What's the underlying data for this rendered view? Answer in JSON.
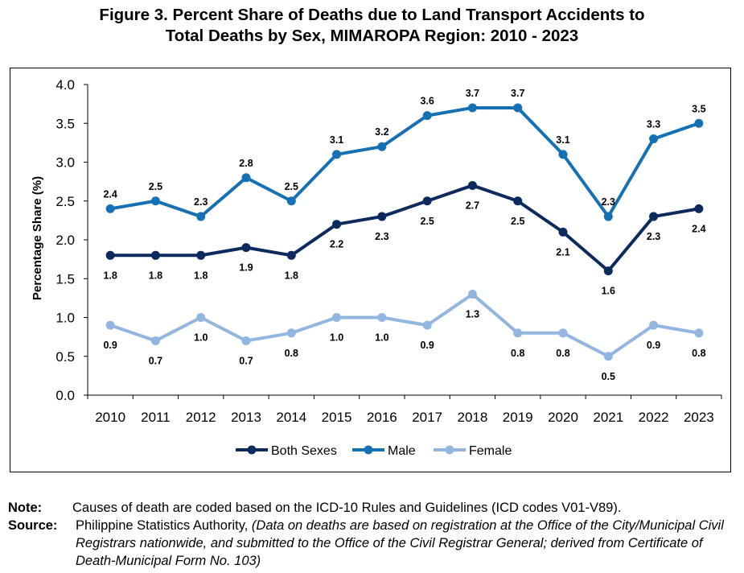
{
  "title_line1": "Figure 3. Percent Share of Deaths due to Land Transport Accidents to",
  "title_line2": "Total Deaths by Sex, MIMAROPA Region: 2010 - 2023",
  "note_label": "Note:",
  "note_text": "Causes of death are coded based on the ICD-10 Rules and Guidelines (ICD codes V01-V89).",
  "source_label": "Source:",
  "source_text": "Philippine Statistics Authority,",
  "source_italic": "(Data on deaths are based on registration at the Office of the City/Municipal Civil Registrars nationwide, and submitted to the Office of the Civil Registrar General; derived from Certificate of Death-Municipal Form No. 103)",
  "chart_data": {
    "type": "line",
    "ylabel": "Percentage Share (%)",
    "xlabel": "",
    "ylim": [
      0,
      4.0
    ],
    "yticks": [
      "0.0",
      "0.5",
      "1.0",
      "1.5",
      "2.0",
      "2.5",
      "3.0",
      "3.5",
      "4.0"
    ],
    "categories": [
      "2010",
      "2011",
      "2012",
      "2013",
      "2014",
      "2015",
      "2016",
      "2017",
      "2018",
      "2019",
      "2020",
      "2021",
      "2022",
      "2023"
    ],
    "grid": false,
    "legend": "bottom",
    "series": [
      {
        "name": "Both Sexes",
        "color": "#0c2a5e",
        "label_pos": "below",
        "values": [
          1.8,
          1.8,
          1.8,
          1.9,
          1.8,
          2.2,
          2.3,
          2.5,
          2.7,
          2.5,
          2.1,
          1.6,
          2.3,
          2.4
        ],
        "labels": [
          "1.8",
          "1.8",
          "1.8",
          "1.9",
          "1.8",
          "2.2",
          "2.3",
          "2.5",
          "2.7",
          "2.5",
          "2.1",
          "1.6",
          "2.3",
          "2.4"
        ]
      },
      {
        "name": "Male",
        "color": "#1670b4",
        "label_pos": "above",
        "values": [
          2.4,
          2.5,
          2.3,
          2.8,
          2.5,
          3.1,
          3.2,
          3.6,
          3.7,
          3.7,
          3.1,
          2.3,
          3.3,
          3.5
        ],
        "labels": [
          "2.4",
          "2.5",
          "2.3",
          "2.8",
          "2.5",
          "3.1",
          "3.2",
          "3.6",
          "3.7",
          "3.7",
          "3.1",
          "2.3",
          "3.3",
          "3.5"
        ]
      },
      {
        "name": "Female",
        "color": "#92b6e0",
        "label_pos": "below",
        "values": [
          0.9,
          0.7,
          1.0,
          0.7,
          0.8,
          1.0,
          1.0,
          0.9,
          1.3,
          0.8,
          0.8,
          0.5,
          0.9,
          0.8
        ],
        "labels": [
          "0.9",
          "0.7",
          "1.0",
          "0.7",
          "0.8",
          "1.0",
          "1.0",
          "0.9",
          "1.3",
          "0.8",
          "0.8",
          "0.5",
          "0.9",
          "0.8"
        ]
      }
    ]
  }
}
